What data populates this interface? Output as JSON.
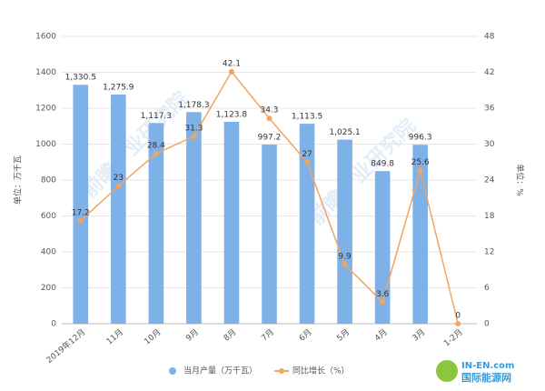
{
  "chart_data": {
    "type": "bar-line",
    "categories": [
      "2019年12月",
      "11月",
      "10月",
      "9月",
      "8月",
      "7月",
      "6月",
      "5月",
      "4月",
      "3月",
      "1-2月"
    ],
    "series": [
      {
        "name": "当月产量（万千瓦）",
        "color": "#7eb1e8",
        "type": "bar",
        "values": [
          1330.5,
          1275.9,
          1117.3,
          1178.3,
          1123.8,
          997.2,
          1113.5,
          1025.1,
          849.8,
          996.3,
          null
        ],
        "value_labels": [
          "1,330.5",
          "1,275.9",
          "1,117.3",
          "1,178.3",
          "1,123.8",
          "997.2",
          "1,113.5",
          "1,025.1",
          "849.8",
          "996.3",
          null
        ]
      },
      {
        "name": "同比增长（%）",
        "color": "#f0a560",
        "type": "line",
        "axis": "y2",
        "values": [
          17.2,
          23,
          28.4,
          31.3,
          42.1,
          34.3,
          27,
          9.9,
          3.6,
          25.6,
          0
        ]
      }
    ],
    "ylabel": "单位：万千瓦",
    "y2label": "单位：%",
    "ylim": [
      0,
      1600
    ],
    "yticks": [
      0,
      200,
      400,
      600,
      800,
      1000,
      1200,
      1400,
      1600
    ],
    "y2lim": [
      0,
      48
    ],
    "y2ticks": [
      0,
      6,
      12,
      18,
      24,
      30,
      36,
      42,
      48
    ],
    "grid": true,
    "legend": "bottom",
    "watermark": "前瞻产业研究院",
    "logo": [
      "IN-EN.com",
      "国际能源网"
    ]
  }
}
